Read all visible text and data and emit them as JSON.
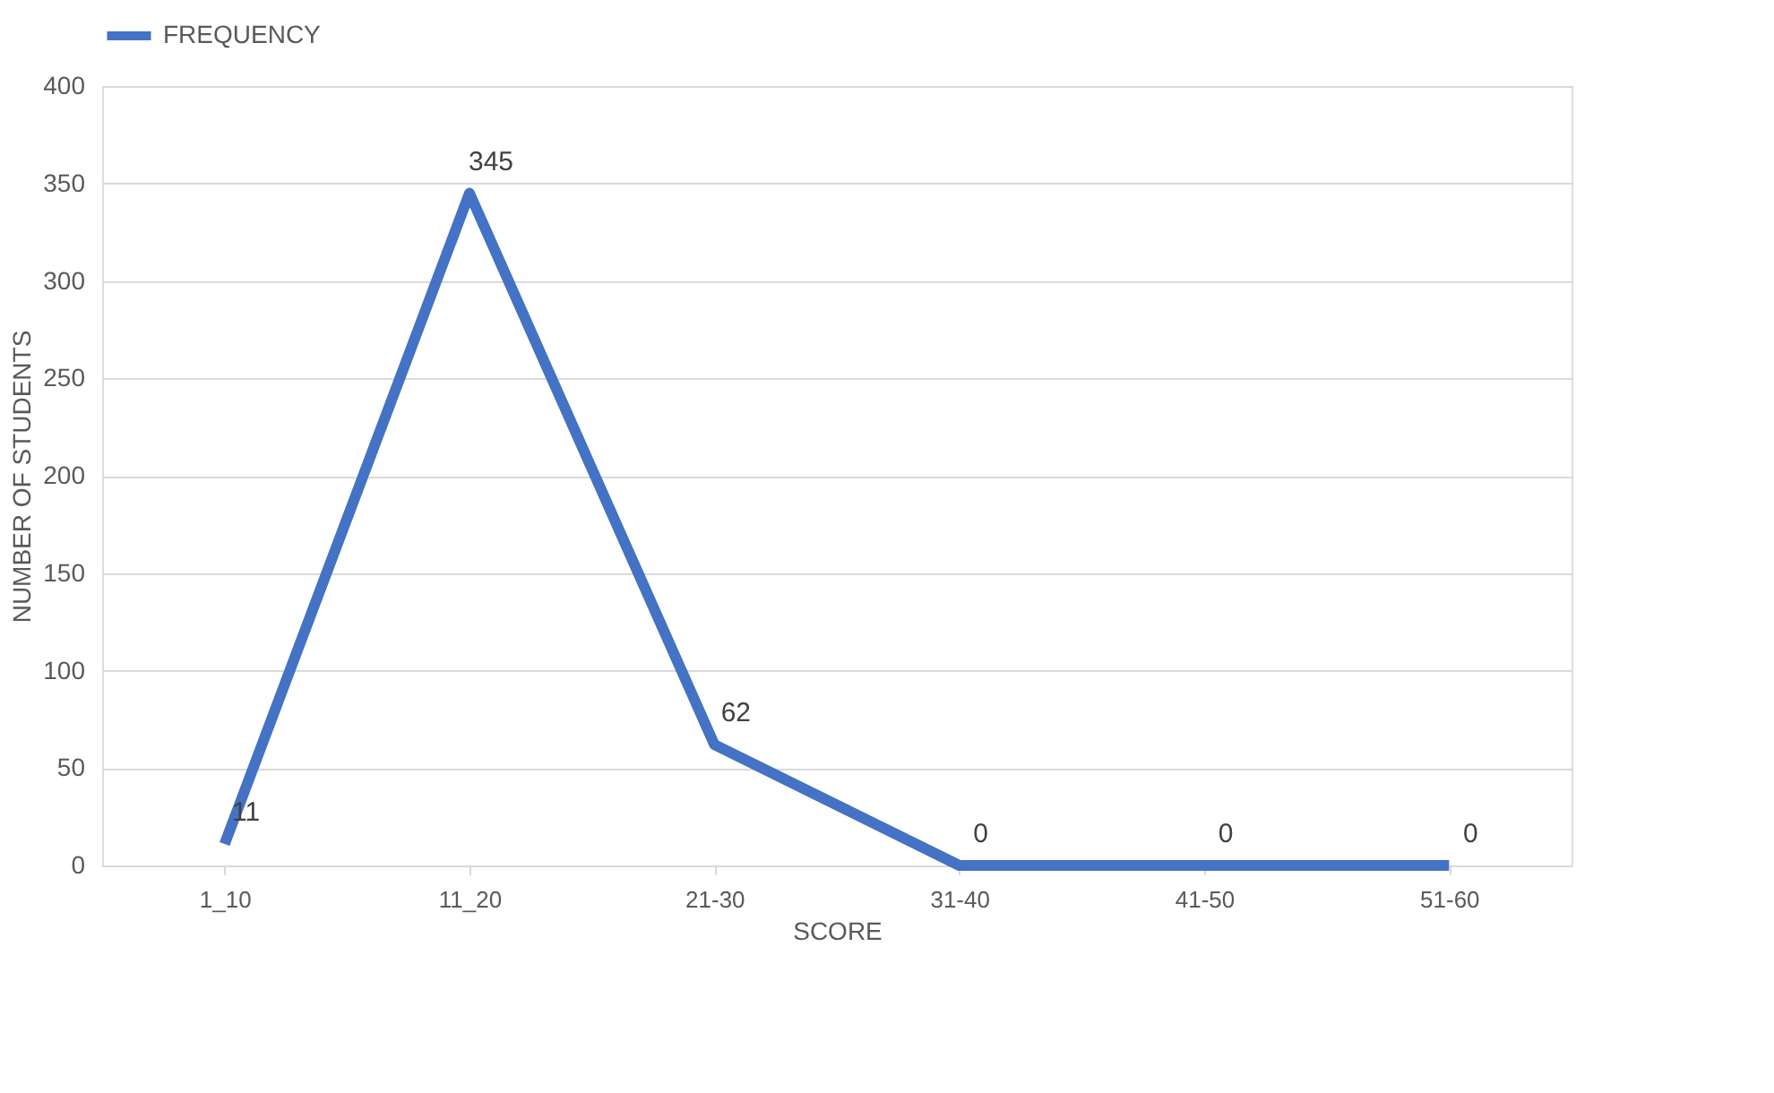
{
  "chart_data": {
    "type": "line",
    "xlabel": "SCORE",
    "ylabel": "NUMBER OF STUDENTS",
    "categories": [
      "1_10",
      "11_20",
      "21-30",
      "31-40",
      "41-50",
      "51-60"
    ],
    "series": [
      {
        "name": "FREQUENCY",
        "color": "#4472c4",
        "values": [
          11,
          345,
          62,
          0,
          0,
          0
        ]
      }
    ],
    "ylim": [
      0,
      400
    ],
    "yticks": [
      0,
      50,
      100,
      150,
      200,
      250,
      300,
      350,
      400
    ],
    "grid": "y",
    "legend": "top",
    "marker": "none",
    "line_style": "solid",
    "data_labels": true
  }
}
